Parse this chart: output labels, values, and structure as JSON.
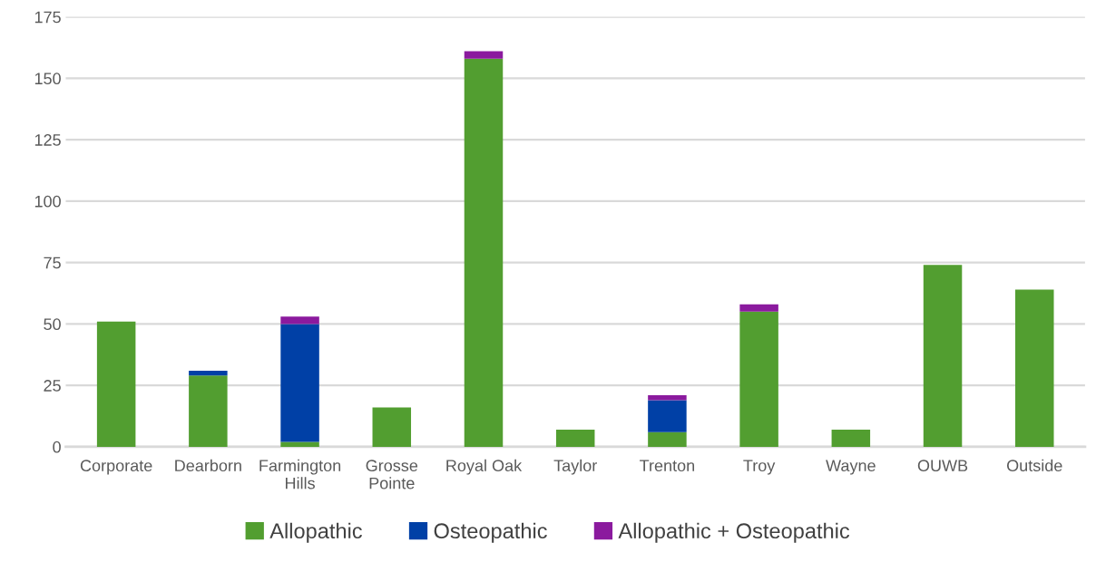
{
  "chart_data": {
    "type": "bar",
    "stacked": true,
    "categories": [
      "Corporate",
      "Dearborn",
      "Farmington\nHills",
      "Grosse\nPointe",
      "Royal Oak",
      "Taylor",
      "Trenton",
      "Troy",
      "Wayne",
      "OUWB",
      "Outside"
    ],
    "series": [
      {
        "name": "Allopathic",
        "color": "#529e30",
        "values": [
          51,
          29,
          2,
          16,
          158,
          7,
          6,
          55,
          7,
          74,
          64
        ]
      },
      {
        "name": "Osteopathic",
        "color": "#0040a6",
        "values": [
          0,
          2,
          48,
          0,
          0,
          0,
          13,
          0,
          0,
          0,
          0
        ]
      },
      {
        "name": "Allopathic + Osteopathic",
        "color": "#8b1a9e",
        "values": [
          0,
          0,
          3,
          0,
          3,
          0,
          2,
          3,
          0,
          0,
          0
        ]
      }
    ],
    "ylim": [
      0,
      175
    ],
    "yticks": [
      0,
      25,
      50,
      75,
      100,
      125,
      150,
      175
    ],
    "grid": "y",
    "legend": "bottom"
  }
}
